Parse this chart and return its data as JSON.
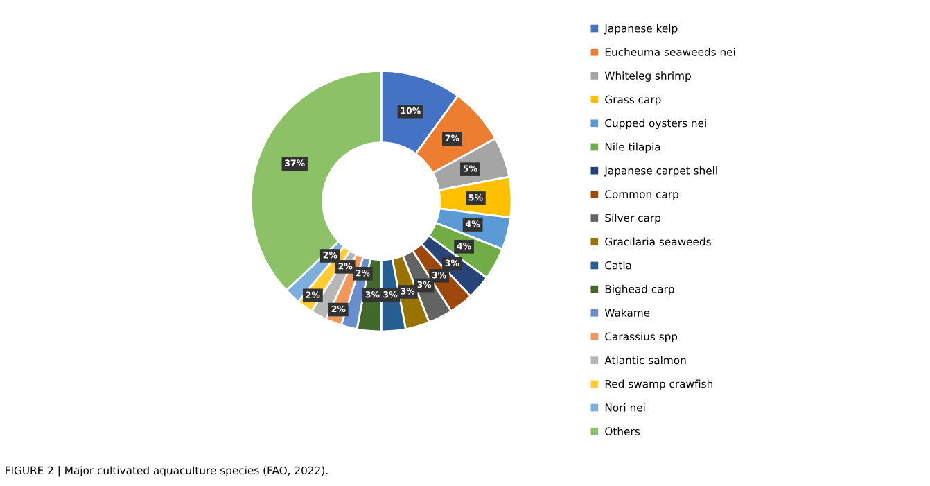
{
  "chart_data": {
    "type": "donut",
    "categories": [
      "Japanese kelp",
      "Eucheuma seaweeds nei",
      "Whiteleg shrimp",
      "Grass carp",
      "Cupped oysters nei",
      "Nile tilapia",
      "Japanese carpet shell",
      "Common carp",
      "Silver carp",
      "Gracilaria seaweeds",
      "Catla",
      "Bighead carp",
      "Wakame",
      "Carassius spp",
      "Atlantic salmon",
      "Red swamp crawfish",
      "Nori nei",
      "Others"
    ],
    "values": [
      10,
      7,
      5,
      5,
      4,
      4,
      3,
      3,
      3,
      3,
      3,
      3,
      2,
      2,
      2,
      2,
      2,
      37
    ],
    "colors": [
      "#4472c4",
      "#ed7d31",
      "#a5a5a5",
      "#ffc000",
      "#5b9bd5",
      "#70ad47",
      "#264478",
      "#9e480e",
      "#636363",
      "#997300",
      "#255e91",
      "#43682b",
      "#698ed0",
      "#f1975a",
      "#b7b7b7",
      "#ffcd33",
      "#7cafdd",
      "#8cc168"
    ],
    "value_labels": [
      "10%",
      "7%",
      "5%",
      "5%",
      "4%",
      "4%",
      "3%",
      "3%",
      "3%",
      "3%",
      "3%",
      "3%",
      "2%",
      "2%",
      "2%",
      "2%",
      "2%",
      "37%"
    ],
    "legend": "right",
    "annotations": [
      "FIGURE 2 | Major cultivated aquaculture species (FAO, 2022)."
    ]
  }
}
